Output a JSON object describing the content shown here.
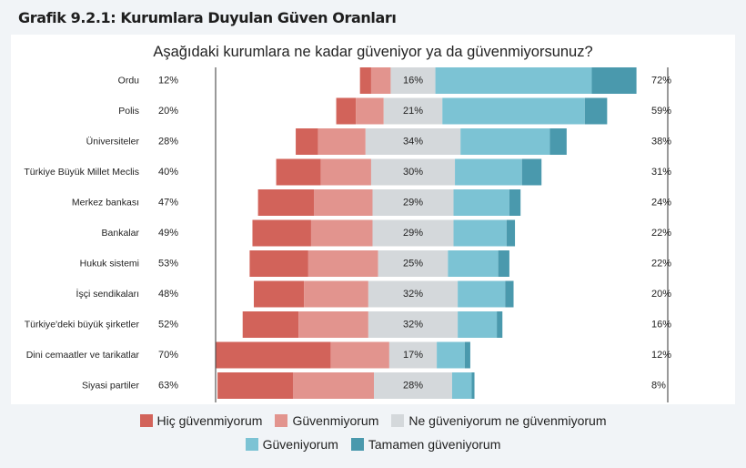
{
  "figure_title": "Grafik 9.2.1: Kurumlara Duyulan Güven Oranları",
  "chart_data": {
    "type": "bar",
    "orientation": "horizontal",
    "stacked": "diverging",
    "title": "Aşağıdaki kurumlara ne kadar güveniyor ya da güvenmiyorsunuz?",
    "categories": [
      "Ordu",
      "Polis",
      "Üniversiteler",
      "Türkiye Büyük Millet Meclis",
      "Merkez bankası",
      "Bankalar",
      "Hukuk sistemi",
      "İşçi sendikaları",
      "Türkiye'deki büyük şirketler",
      "Dini cemaatler ve tarikatlar",
      "Siyasi partiler"
    ],
    "series": [
      {
        "name": "Hiç güvenmiyorum",
        "color": "#d2635a",
        "values": [
          4,
          7,
          8,
          16,
          20,
          21,
          21,
          18,
          20,
          41,
          27
        ]
      },
      {
        "name": "Güvenmiyorum",
        "color": "#e2948e",
        "values": [
          7,
          10,
          17,
          18,
          21,
          22,
          25,
          23,
          25,
          21,
          29
        ]
      },
      {
        "name": "Ne güveniyorum ne güvenmiyorum",
        "color": "#d4d8db",
        "values": [
          16,
          21,
          34,
          30,
          29,
          29,
          25,
          32,
          32,
          17,
          28
        ]
      },
      {
        "name": "Güveniyorum",
        "color": "#7cc3d4",
        "values": [
          56,
          51,
          32,
          24,
          20,
          19,
          18,
          17,
          14,
          10,
          7
        ]
      },
      {
        "name": "Tamamen güveniyorum",
        "color": "#4a99ad",
        "values": [
          16,
          8,
          6,
          7,
          4,
          3,
          4,
          3,
          2,
          2,
          1
        ]
      }
    ],
    "left_totals": [
      "12%",
      "20%",
      "28%",
      "40%",
      "47%",
      "49%",
      "53%",
      "48%",
      "52%",
      "70%",
      "63%"
    ],
    "neutral_labels": [
      "16%",
      "21%",
      "34%",
      "30%",
      "29%",
      "29%",
      "25%",
      "32%",
      "32%",
      "17%",
      "28%"
    ],
    "right_totals": [
      "72%",
      "59%",
      "38%",
      "31%",
      "24%",
      "22%",
      "22%",
      "20%",
      "16%",
      "12%",
      "8%"
    ],
    "legend_position": "bottom",
    "grid": false
  }
}
